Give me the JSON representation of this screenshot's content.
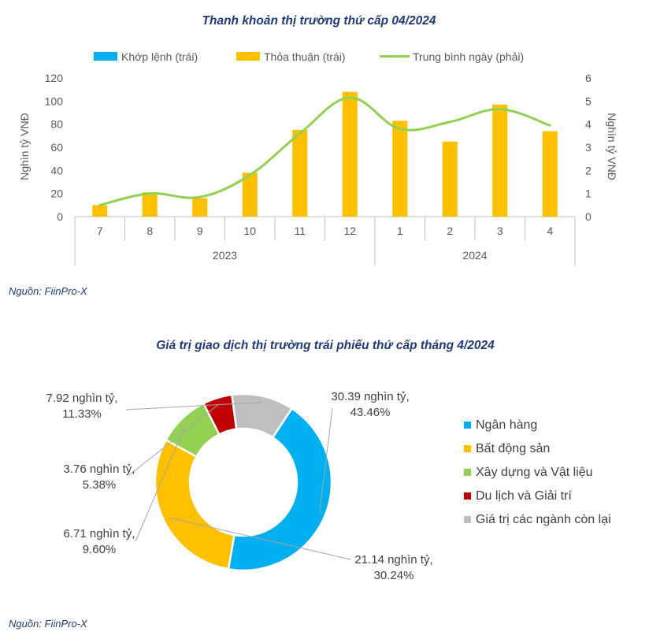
{
  "chart1": {
    "title": "Thanh khoản thị trường thứ cấp 04/2024",
    "source": "Nguồn: FiinPro-X",
    "legend": {
      "khop": "Khớp lệnh (trái)",
      "thoa": "Thỏa thuận (trái)",
      "avg": "Trung bình ngày (phải)"
    },
    "ylabel_left": "Nghìn tỷ VNĐ",
    "ylabel_right": "Nghìn tỷ VNĐ",
    "colors": {
      "khop": "#00b0f0",
      "thoa": "#ffc000",
      "avg": "#92d050"
    }
  },
  "chart2": {
    "title": "Giá trị giao dịch thị trường trái phiếu thứ cấp tháng 4/2024",
    "source": "Nguồn: FiinPro-X"
  },
  "chart_data": [
    {
      "type": "bar",
      "title": "Thanh khoản thị trường thứ cấp 04/2024",
      "categories": [
        "7",
        "8",
        "9",
        "10",
        "11",
        "12",
        "1",
        "2",
        "3",
        "4"
      ],
      "groups": [
        {
          "label": "2023",
          "count": 6
        },
        {
          "label": "2024",
          "count": 4
        }
      ],
      "series": [
        {
          "name": "Khớp lệnh (trái)",
          "axis": "left",
          "values": [
            0,
            0,
            0,
            0,
            0,
            0,
            0,
            0,
            0,
            0
          ]
        },
        {
          "name": "Thỏa thuận (trái)",
          "axis": "left",
          "values": [
            10,
            21,
            16,
            38,
            75,
            108,
            83,
            65,
            97,
            74
          ]
        },
        {
          "name": "Trung bình ngày (phải)",
          "axis": "right",
          "type": "line",
          "values": [
            0.5,
            1.0,
            0.85,
            1.8,
            3.6,
            5.15,
            3.8,
            4.1,
            4.65,
            3.95
          ]
        }
      ],
      "ylabel": "Nghìn tỷ VNĐ",
      "ylim": [
        0,
        120
      ],
      "yticks": [
        "0",
        "20",
        "40",
        "60",
        "80",
        "100",
        "120"
      ],
      "ylabel_right": "Nghìn tỷ VNĐ",
      "ylim_right": [
        0,
        6
      ],
      "yticks_right": [
        "0",
        "1",
        "2",
        "3",
        "4",
        "5",
        "6"
      ],
      "legend_position": "top"
    },
    {
      "type": "pie",
      "title": "Giá trị giao dịch thị trường trái phiếu thứ cấp tháng 4/2024",
      "donut": true,
      "slices": [
        {
          "name": "Ngân hàng",
          "value": 30.39,
          "percent": 43.46,
          "label1": "30.39 nghìn tỷ,",
          "label2": "43.46%",
          "color": "#00b0f0"
        },
        {
          "name": "Bất động sản",
          "value": 21.14,
          "percent": 30.24,
          "label1": "21.14 nghìn tỷ,",
          "label2": "30.24%",
          "color": "#ffc000"
        },
        {
          "name": "Xây dựng và Vật liệu",
          "value": 6.71,
          "percent": 9.6,
          "label1": "6.71 nghìn tỷ,",
          "label2": "9.60%",
          "color": "#92d050"
        },
        {
          "name": "Du lịch và Giải trí",
          "value": 3.76,
          "percent": 5.38,
          "label1": "3.76 nghìn tỷ,",
          "label2": "5.38%",
          "color": "#c00000"
        },
        {
          "name": "Giá trị các ngành còn lại",
          "value": 7.92,
          "percent": 11.33,
          "label1": "7.92 nghìn tỷ,",
          "label2": "11.33%",
          "color": "#bfbfbf"
        }
      ],
      "legend_position": "right"
    }
  ]
}
